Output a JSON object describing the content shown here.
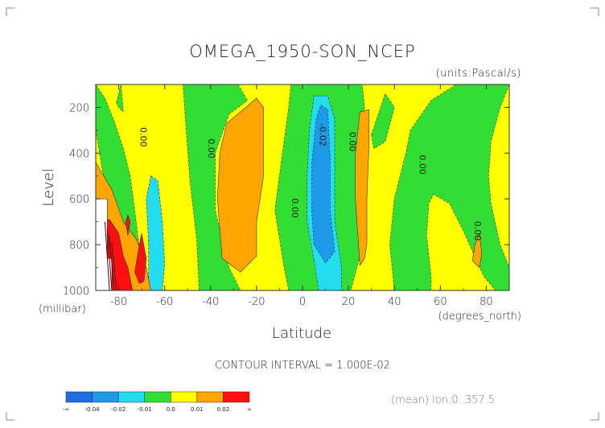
{
  "chart_data": {
    "type": "heatmap",
    "title": "OMEGA_1950-SON_NCEP",
    "units": "(units:Pascal/s)",
    "ylabel": "Level",
    "yunits": "(millibar)",
    "xlabel": "Latitude",
    "xunits": "(degrees_north)",
    "xlim": [
      -90,
      90
    ],
    "ylim": [
      100,
      1000
    ],
    "y_reversed": true,
    "x_ticks": [
      -80,
      -60,
      -40,
      -20,
      0,
      20,
      40,
      60,
      80
    ],
    "y_ticks": [
      200,
      400,
      600,
      800,
      1000
    ],
    "x_tick_labels": [
      "-80",
      "-60",
      "-40",
      "-20",
      "0",
      "20",
      "40",
      "60",
      "80"
    ],
    "y_tick_labels": [
      "200",
      "400",
      "600",
      "800",
      "1000"
    ],
    "contour_interval_text": "CONTOUR INTERVAL = 1.000E-02",
    "mean_text": "(mean) lon:0..357.5",
    "contour_labels": [
      {
        "text": "0.00",
        "lat": -70.5,
        "lev": 330
      },
      {
        "text": "0.00",
        "lat": -41,
        "lev": 380
      },
      {
        "text": "-0.02",
        "lat": 7.5,
        "lev": 320
      },
      {
        "text": "0.00",
        "lat": 20.5,
        "lev": 350
      },
      {
        "text": "0.00",
        "lat": 51,
        "lev": 450
      },
      {
        "text": "0.00",
        "lat": -4.5,
        "lev": 640
      },
      {
        "text": "0.00",
        "lat": 75,
        "lev": 740
      }
    ],
    "levels": [
      "-∞",
      "-0.04",
      "-0.02",
      "-0.01",
      "0.0",
      "0.01",
      "0.02",
      "∞"
    ],
    "colors": [
      "#1f6fe0",
      "#1e9ae8",
      "#22ddf0",
      "#33dd33",
      "#ffff00",
      "#ffa500",
      "#ff1010"
    ],
    "regions": [
      {
        "band": "-0.01..0.0",
        "points": [
          [
            -62,
            1000
          ],
          [
            -70,
            900
          ],
          [
            -73,
            650
          ],
          [
            -75,
            500
          ],
          [
            -78,
            380
          ],
          [
            -82,
            260
          ],
          [
            -86,
            160
          ],
          [
            -90,
            100
          ],
          [
            -90,
            300
          ],
          [
            -85,
            600
          ],
          [
            -80,
            850
          ],
          [
            -75,
            1000
          ]
        ]
      },
      {
        "band": "-0.01..0.0",
        "points": [
          [
            -45,
            1000
          ],
          [
            -46,
            780
          ],
          [
            -49,
            520
          ],
          [
            -51,
            250
          ],
          [
            -52,
            100
          ],
          [
            -28,
            100
          ],
          [
            -24,
            170
          ],
          [
            -32,
            230
          ],
          [
            -38,
            400
          ],
          [
            -38,
            650
          ],
          [
            -32,
            900
          ],
          [
            -27,
            1000
          ]
        ]
      },
      {
        "band": "-0.01..0.0",
        "points": [
          [
            -6,
            1000
          ],
          [
            -8,
            900
          ],
          [
            -12,
            650
          ],
          [
            -9,
            420
          ],
          [
            -6,
            200
          ],
          [
            -5,
            100
          ],
          [
            26,
            100
          ],
          [
            27,
            200
          ],
          [
            25,
            400
          ],
          [
            26,
            700
          ],
          [
            25,
            850
          ],
          [
            21,
            1000
          ]
        ]
      },
      {
        "band": "-0.01..0.0",
        "points": [
          [
            40,
            1000
          ],
          [
            38,
            800
          ],
          [
            40,
            600
          ],
          [
            45,
            400
          ],
          [
            47,
            300
          ],
          [
            56,
            170
          ],
          [
            67,
            100
          ],
          [
            90,
            100
          ],
          [
            86,
            200
          ],
          [
            82,
            350
          ],
          [
            81,
            500
          ],
          [
            82,
            620
          ],
          [
            86,
            800
          ],
          [
            90,
            900
          ],
          [
            90,
            1000
          ],
          [
            84,
            1000
          ],
          [
            79,
            940
          ],
          [
            70,
            740
          ],
          [
            64,
            620
          ],
          [
            57,
            580
          ],
          [
            55,
            620
          ],
          [
            54,
            760
          ],
          [
            56,
            940
          ],
          [
            56,
            1000
          ]
        ]
      },
      {
        "band": "-0.01..0.0",
        "points": [
          [
            -81,
            180
          ],
          [
            -79,
            100
          ],
          [
            -78,
            220
          ],
          [
            -80,
            200
          ]
        ]
      },
      {
        "band": "-0.01..0.0",
        "points": [
          [
            30,
            320
          ],
          [
            36,
            140
          ],
          [
            40,
            200
          ],
          [
            36,
            350
          ],
          [
            31,
            380
          ]
        ]
      },
      {
        "band": "-0.01..0.0",
        "points": [
          [
            -78,
            830
          ],
          [
            -76,
            740
          ],
          [
            -73,
            860
          ],
          [
            -75,
            920
          ]
        ]
      },
      {
        "band": "-0.02..-0.01",
        "points": [
          [
            -66,
            500
          ],
          [
            -63,
            520
          ],
          [
            -61,
            700
          ],
          [
            -60,
            880
          ],
          [
            -61,
            1000
          ],
          [
            -67,
            1000
          ],
          [
            -67,
            800
          ],
          [
            -68,
            600
          ]
        ]
      },
      {
        "band": "-0.02..-0.01",
        "points": [
          [
            5,
            870
          ],
          [
            2,
            700
          ],
          [
            2,
            500
          ],
          [
            3,
            300
          ],
          [
            5,
            150
          ],
          [
            11,
            150
          ],
          [
            14,
            250
          ],
          [
            14,
            500
          ],
          [
            14,
            700
          ],
          [
            17,
            900
          ],
          [
            17,
            1000
          ],
          [
            7,
            1000
          ]
        ]
      },
      {
        "band": "-0.02..-0.01",
        "points": [
          [
            -84,
            850
          ],
          [
            -82,
            870
          ],
          [
            -81,
            1000
          ],
          [
            -84,
            1000
          ]
        ]
      },
      {
        "band": "-0.04..-0.02",
        "points": [
          [
            5,
            800
          ],
          [
            4,
            650
          ],
          [
            4,
            450
          ],
          [
            6,
            250
          ],
          [
            8,
            190
          ],
          [
            11,
            210
          ],
          [
            12,
            420
          ],
          [
            12,
            650
          ],
          [
            14,
            830
          ],
          [
            10,
            880
          ]
        ]
      },
      {
        "band": "0.01..0.02",
        "points": [
          [
            -90,
            440
          ],
          [
            -83,
            560
          ],
          [
            -78,
            700
          ],
          [
            -72,
            780
          ],
          [
            -68,
            900
          ],
          [
            -66,
            1000
          ],
          [
            -75,
            1000
          ],
          [
            -85,
            900
          ],
          [
            -90,
            900
          ]
        ]
      },
      {
        "band": "0.01..0.02",
        "points": [
          [
            -35,
            860
          ],
          [
            -37,
            600
          ],
          [
            -36,
            400
          ],
          [
            -33,
            270
          ],
          [
            -20,
            160
          ],
          [
            -17,
            200
          ],
          [
            -17,
            500
          ],
          [
            -20,
            700
          ],
          [
            -20,
            850
          ],
          [
            -27,
            920
          ]
        ]
      },
      {
        "band": "0.01..0.02",
        "points": [
          [
            25,
            890
          ],
          [
            23,
            600
          ],
          [
            23,
            400
          ],
          [
            25,
            220
          ],
          [
            29,
            210
          ],
          [
            29,
            350
          ],
          [
            28,
            600
          ],
          [
            28,
            800
          ],
          [
            27,
            860
          ]
        ]
      },
      {
        "band": "0.01..0.02",
        "points": [
          [
            74,
            870
          ],
          [
            75,
            800
          ],
          [
            77,
            750
          ],
          [
            78,
            840
          ],
          [
            77,
            900
          ]
        ]
      },
      {
        "band": "0.02..∞",
        "points": [
          [
            -89,
            700
          ],
          [
            -84,
            690
          ],
          [
            -80,
            750
          ],
          [
            -78,
            850
          ],
          [
            -76,
            900
          ],
          [
            -74,
            1000
          ],
          [
            -89,
            1000
          ]
        ]
      },
      {
        "band": "0.02..∞",
        "points": [
          [
            -73,
            920
          ],
          [
            -71,
            800
          ],
          [
            -70,
            750
          ],
          [
            -68,
            860
          ],
          [
            -69,
            960
          ],
          [
            -71,
            970
          ]
        ]
      },
      {
        "band": "0.02..∞",
        "points": [
          [
            -77,
            700
          ],
          [
            -76,
            670
          ],
          [
            -75,
            700
          ],
          [
            -76,
            760
          ]
        ]
      },
      {
        "band": "missing",
        "points": [
          [
            -90,
            600
          ],
          [
            -85,
            600
          ],
          [
            -85,
            860
          ],
          [
            -83,
            860
          ],
          [
            -83,
            1000
          ],
          [
            -90,
            1000
          ]
        ]
      }
    ]
  }
}
